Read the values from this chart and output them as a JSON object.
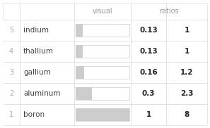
{
  "rows": [
    {
      "rank": "5",
      "element": "indium",
      "visual": 0.13,
      "ratio": "1"
    },
    {
      "rank": "4",
      "element": "thallium",
      "visual": 0.13,
      "ratio": "1"
    },
    {
      "rank": "3",
      "element": "gallium",
      "visual": 0.16,
      "ratio": "1.2"
    },
    {
      "rank": "2",
      "element": "aluminum",
      "visual": 0.3,
      "ratio": "2.3"
    },
    {
      "rank": "1",
      "element": "boron",
      "visual": 1.0,
      "ratio": "8"
    }
  ],
  "bg_color": "#ffffff",
  "header_text_color": "#999999",
  "rank_text_color": "#aaaaaa",
  "element_text_color": "#444444",
  "value_text_color": "#222222",
  "bar_fill_color": "#cccccc",
  "bar_bg_color": "#ffffff",
  "bar_border_color": "#cccccc",
  "grid_color": "#dddddd",
  "figsize": [
    2.97,
    1.82
  ],
  "dpi": 100
}
